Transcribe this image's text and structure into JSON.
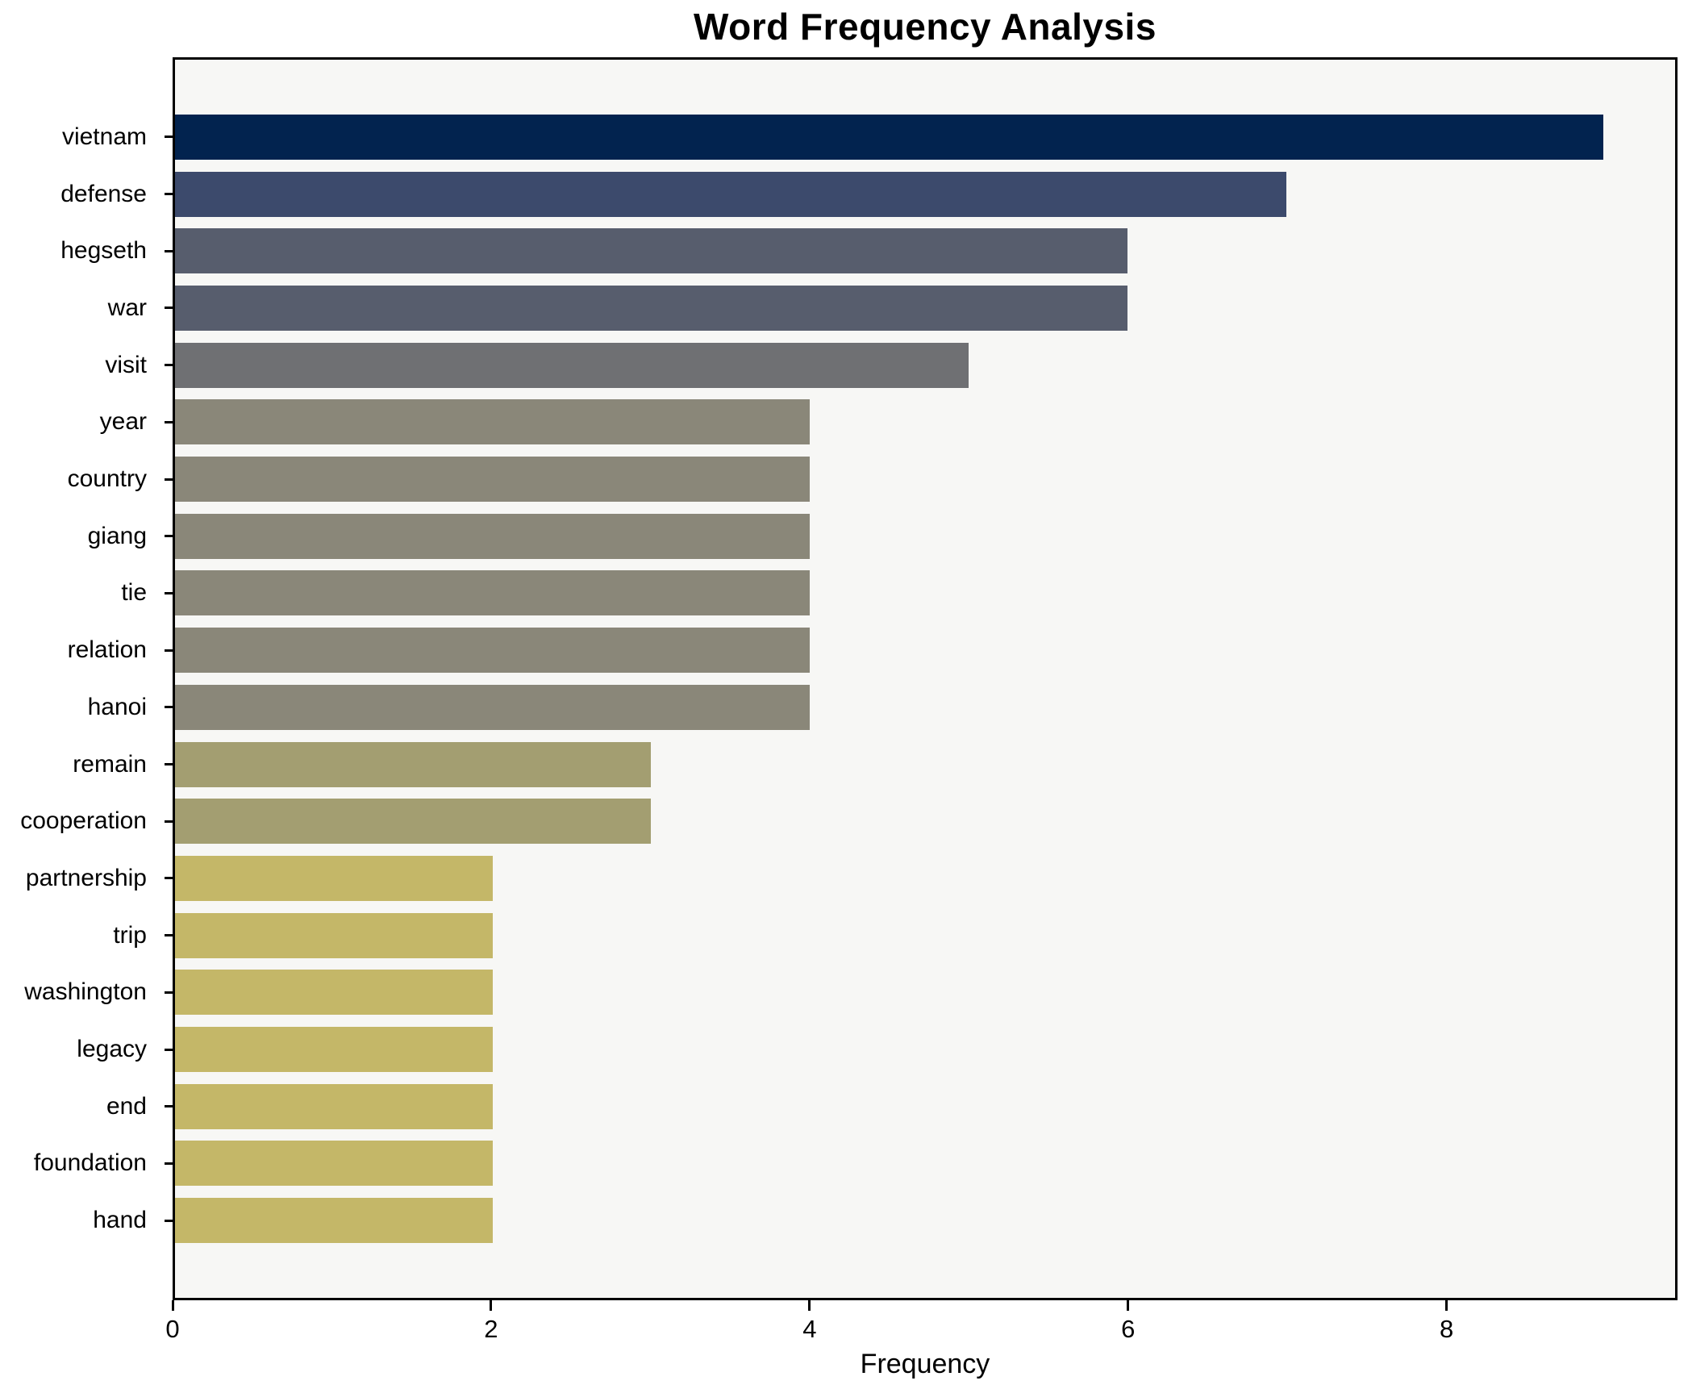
{
  "chart_data": {
    "type": "bar",
    "orientation": "horizontal",
    "title": "Word Frequency Analysis",
    "xlabel": "Frequency",
    "ylabel": "",
    "xlim": [
      0,
      9.45
    ],
    "xticks": [
      0,
      2,
      4,
      6,
      8
    ],
    "grid": false,
    "legend": "none",
    "plot_background": "#f7f7f5",
    "figure_background": "#ffffff",
    "axis_color": "#000000",
    "bars": [
      {
        "label": "vietnam",
        "value": 9,
        "color": "#02234f"
      },
      {
        "label": "defense",
        "value": 7,
        "color": "#3c4a6c"
      },
      {
        "label": "hegseth",
        "value": 6,
        "color": "#575d6d"
      },
      {
        "label": "war",
        "value": 6,
        "color": "#575d6d"
      },
      {
        "label": "visit",
        "value": 5,
        "color": "#6f7073"
      },
      {
        "label": "year",
        "value": 4,
        "color": "#8a8779"
      },
      {
        "label": "country",
        "value": 4,
        "color": "#8a8779"
      },
      {
        "label": "giang",
        "value": 4,
        "color": "#8a8779"
      },
      {
        "label": "tie",
        "value": 4,
        "color": "#8a8779"
      },
      {
        "label": "relation",
        "value": 4,
        "color": "#8a8779"
      },
      {
        "label": "hanoi",
        "value": 4,
        "color": "#8a8779"
      },
      {
        "label": "remain",
        "value": 3,
        "color": "#a39e71"
      },
      {
        "label": "cooperation",
        "value": 3,
        "color": "#a39e71"
      },
      {
        "label": "partnership",
        "value": 2,
        "color": "#c4b768"
      },
      {
        "label": "trip",
        "value": 2,
        "color": "#c4b768"
      },
      {
        "label": "washington",
        "value": 2,
        "color": "#c4b768"
      },
      {
        "label": "legacy",
        "value": 2,
        "color": "#c4b768"
      },
      {
        "label": "end",
        "value": 2,
        "color": "#c4b768"
      },
      {
        "label": "foundation",
        "value": 2,
        "color": "#c4b768"
      },
      {
        "label": "hand",
        "value": 2,
        "color": "#c4b768"
      }
    ]
  }
}
